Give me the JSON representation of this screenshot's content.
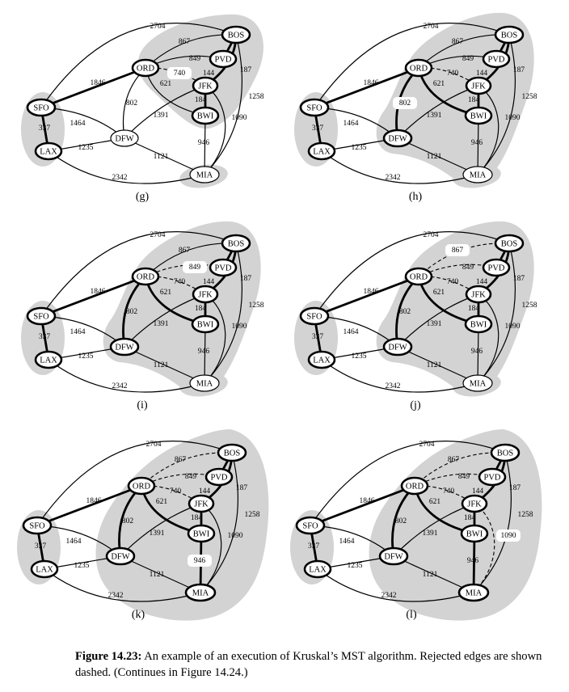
{
  "panels": [
    {
      "label": "(g)"
    },
    {
      "label": "(h)"
    },
    {
      "label": "(i)"
    },
    {
      "label": "(j)"
    },
    {
      "label": "(k)"
    },
    {
      "label": "(l)"
    }
  ],
  "airports": [
    "BOS",
    "PVD",
    "ORD",
    "JFK",
    "BWI",
    "SFO",
    "LAX",
    "DFW",
    "MIA"
  ],
  "edges": [
    {
      "from": "SFO",
      "to": "BOS",
      "w": "2704"
    },
    {
      "from": "ORD",
      "to": "BOS",
      "w": "867"
    },
    {
      "from": "ORD",
      "to": "PVD",
      "w": "849"
    },
    {
      "from": "PVD",
      "to": "BOS",
      "w": "144"
    },
    {
      "from": "ORD",
      "to": "JFK",
      "w": "740"
    },
    {
      "from": "JFK",
      "to": "BOS",
      "w": "187"
    },
    {
      "from": "SFO",
      "to": "ORD",
      "w": "1846"
    },
    {
      "from": "ORD",
      "to": "BWI",
      "w": "621"
    },
    {
      "from": "JFK",
      "to": "BWI",
      "w": "184"
    },
    {
      "from": "BOS",
      "to": "MIA",
      "w": "1258"
    },
    {
      "from": "ORD",
      "to": "DFW",
      "w": "802"
    },
    {
      "from": "DFW",
      "to": "JFK",
      "w": "1391"
    },
    {
      "from": "SFO",
      "to": "DFW",
      "w": "1464"
    },
    {
      "from": "BWI",
      "to": "MIA",
      "w": "946"
    },
    {
      "from": "JFK",
      "to": "MIA",
      "w": "1090"
    },
    {
      "from": "SFO",
      "to": "LAX",
      "w": "337"
    },
    {
      "from": "LAX",
      "to": "DFW",
      "w": "1235"
    },
    {
      "from": "DFW",
      "to": "MIA",
      "w": "1121"
    },
    {
      "from": "LAX",
      "to": "MIA",
      "w": "2342"
    }
  ],
  "caption": {
    "label": "Figure 14.23:",
    "text": " An example of an execution of Kruskal’s MST algorithm. Rejected edges are shown dashed. (Continues in Figure 14.24.)"
  }
}
